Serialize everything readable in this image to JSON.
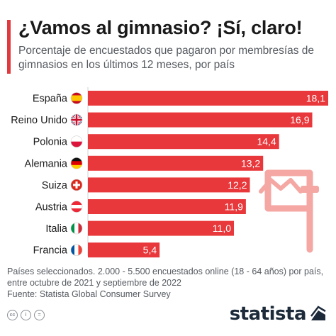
{
  "header": {
    "title": "¿Vamos al gimnasio? ¡Sí, claro!",
    "subtitle": "Porcentaje de encuestados que pagaron por membresías de gimnasios en los últimos 12 meses, por país"
  },
  "chart_data": {
    "type": "bar",
    "orientation": "horizontal",
    "categories": [
      "España",
      "Reino Unido",
      "Polonia",
      "Alemania",
      "Suiza",
      "Austria",
      "Italia",
      "Francia"
    ],
    "values": [
      18.1,
      16.9,
      14.4,
      13.2,
      12.2,
      11.9,
      11.0,
      5.4
    ],
    "value_labels": [
      "18,1",
      "16,9",
      "14,4",
      "13,2",
      "12,2",
      "11,9",
      "11,0",
      "5,4"
    ],
    "xlim": [
      0,
      18.1
    ],
    "grid": false,
    "bar_color": "#e8383b",
    "flags": [
      "spain-flag-icon",
      "uk-flag-icon",
      "poland-flag-icon",
      "germany-flag-icon",
      "switzerland-flag-icon",
      "austria-flag-icon",
      "italy-flag-icon",
      "france-flag-icon"
    ]
  },
  "decoration": {
    "icon": "gym-equipment-icon",
    "color": "#f4a7a3"
  },
  "footnote": {
    "lines": [
      "Países seleccionados. 2.000 - 5.500 encuestados online (18 - 64 años) por país,",
      "entre octubre de 2021 y septiembre de 2022",
      "Fuente: Statista Global Consumer Survey"
    ]
  },
  "license_icons": [
    "cc",
    "i",
    "="
  ],
  "brand": {
    "name": "statista"
  },
  "colors": {
    "accent": "#e03a3e",
    "text": "#1a1a1a",
    "muted": "#555a60",
    "brand": "#1c2a3a"
  }
}
